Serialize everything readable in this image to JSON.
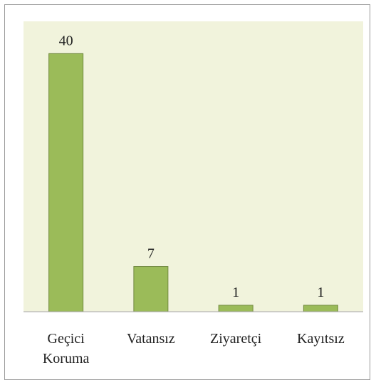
{
  "chart_data": {
    "type": "bar",
    "categories": [
      "Geçici Koruma",
      "Vatansız",
      "Ziyaretçi",
      "Kayıtsız"
    ],
    "values": [
      40,
      7,
      1,
      1
    ],
    "color": "#9bbb59",
    "ylim": [
      0,
      45
    ]
  }
}
